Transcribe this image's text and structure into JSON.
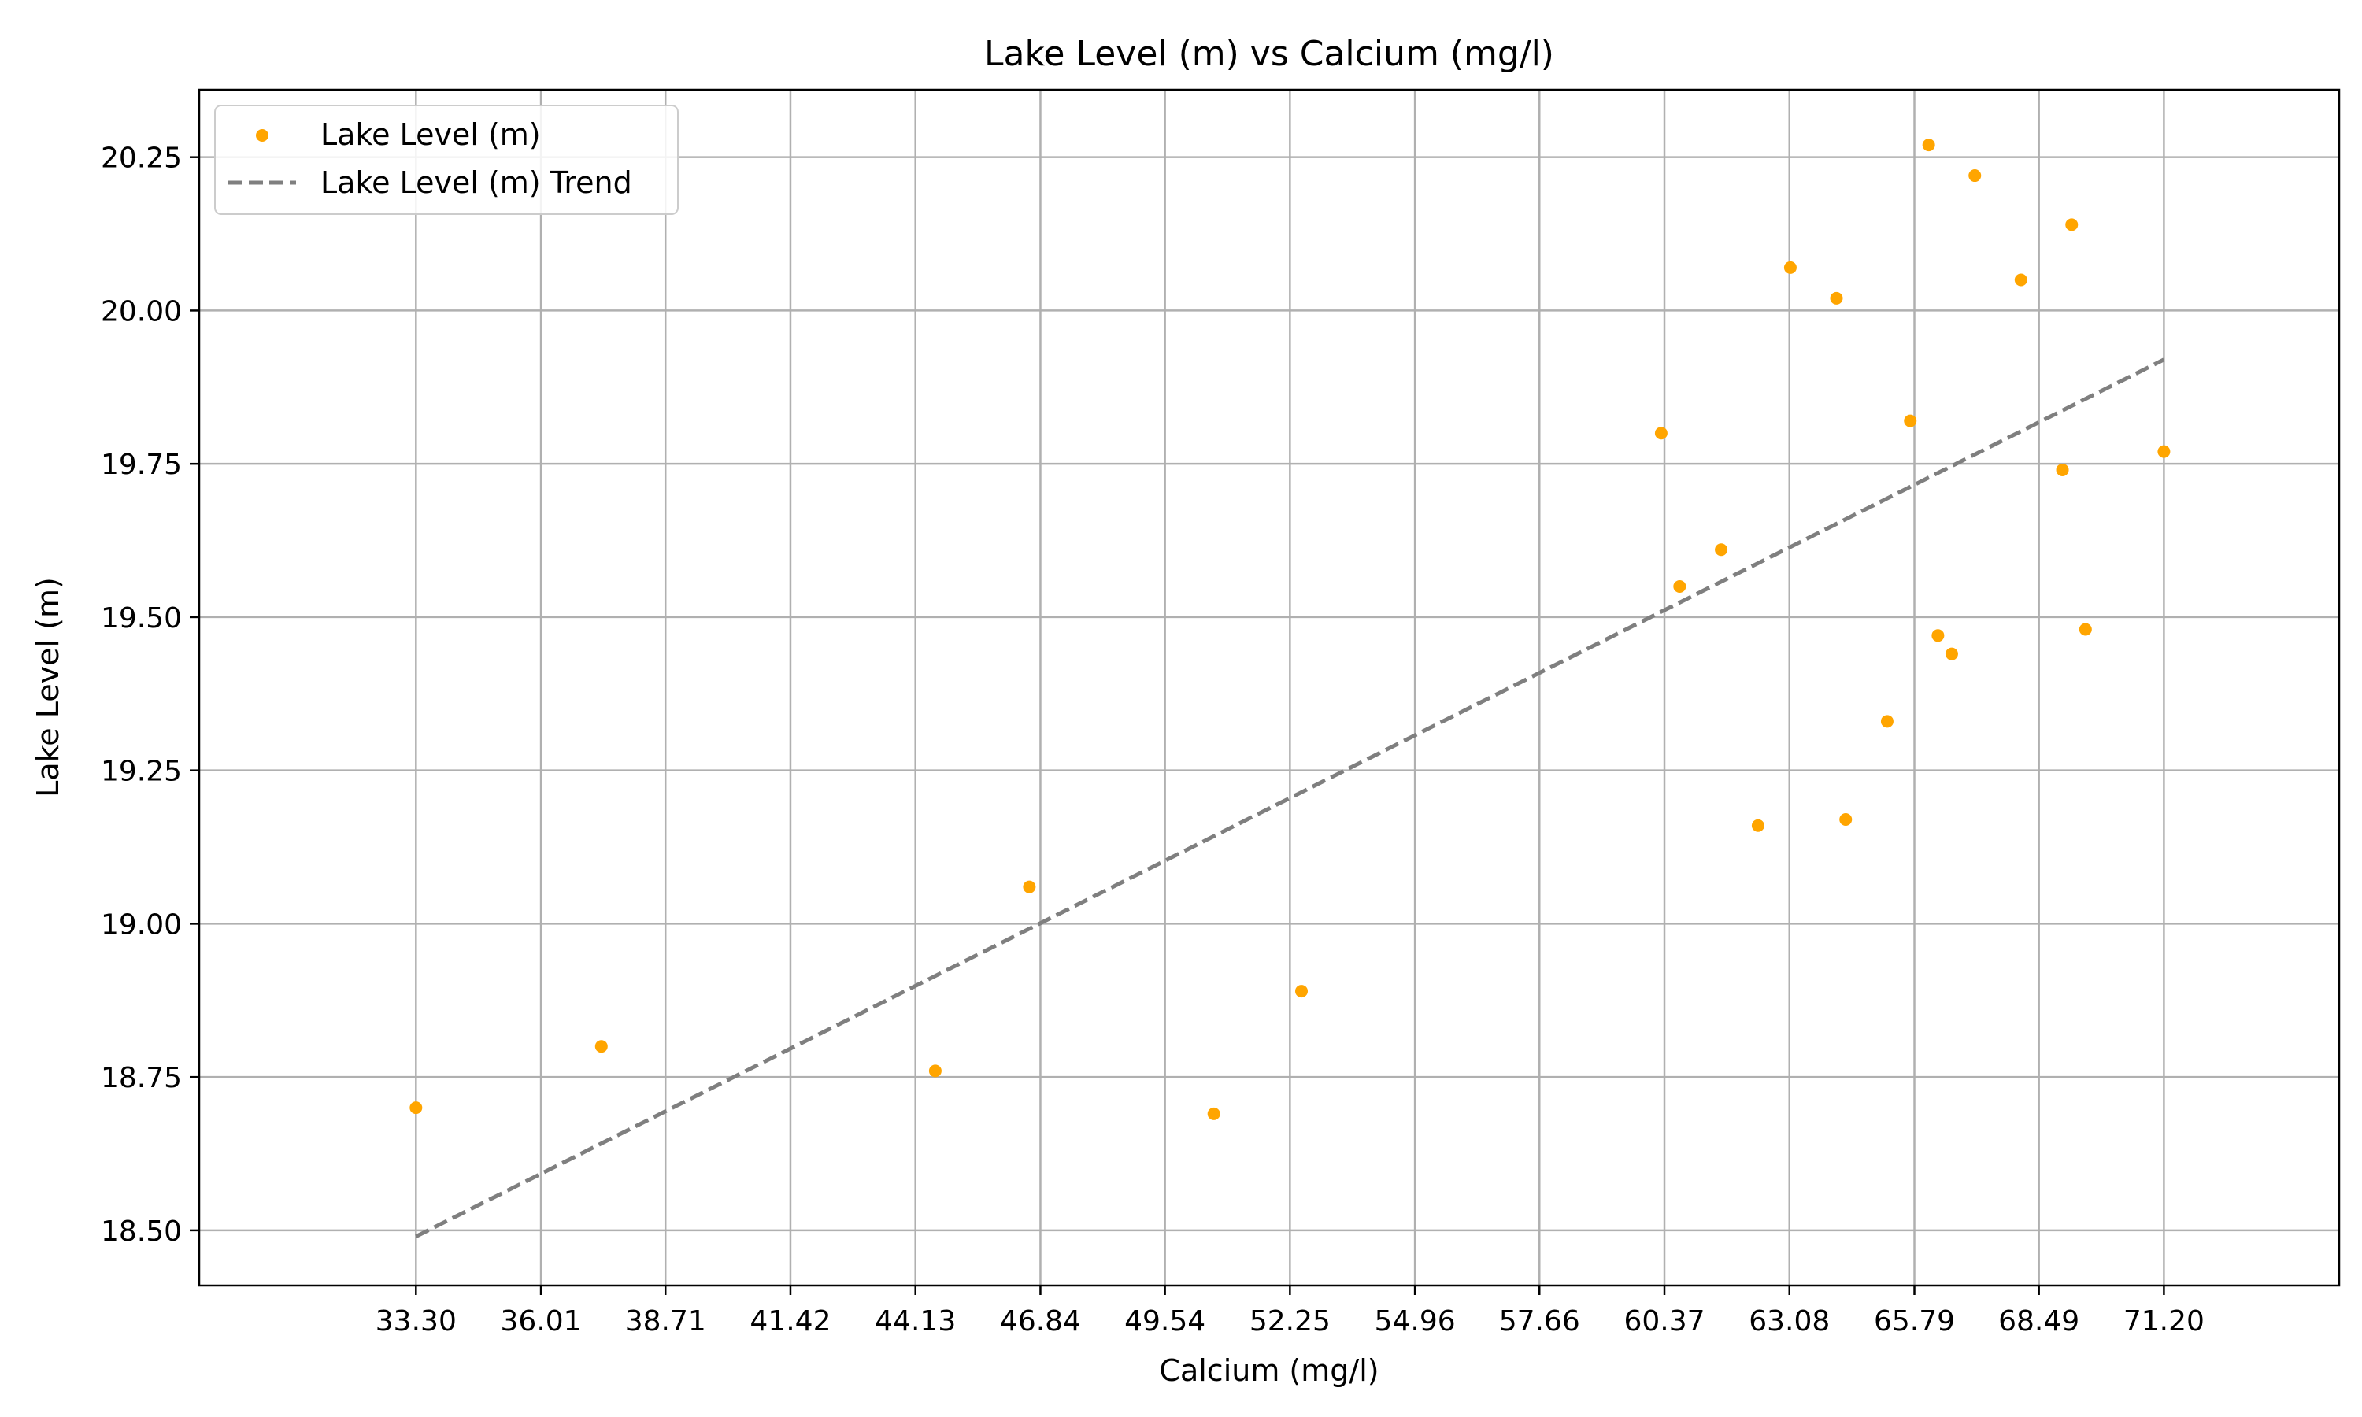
{
  "chart_data": {
    "type": "scatter",
    "title": "Lake Level (m) vs Calcium (mg/l)",
    "xlabel": "Calcium (mg/l)",
    "ylabel": "Lake Level (m)",
    "xlim": [
      28.6,
      75.0
    ],
    "ylim": [
      18.41,
      20.36
    ],
    "x_ticks": [
      33.3,
      36.01,
      38.71,
      41.42,
      44.13,
      46.84,
      49.54,
      52.25,
      54.96,
      57.66,
      60.37,
      63.08,
      65.79,
      68.49,
      71.2
    ],
    "x_tick_labels": [
      "33.30",
      "36.01",
      "38.71",
      "41.42",
      "44.13",
      "46.84",
      "49.54",
      "52.25",
      "54.96",
      "57.66",
      "60.37",
      "63.08",
      "65.79",
      "68.49",
      "71.20"
    ],
    "y_ticks": [
      18.5,
      18.75,
      19.0,
      19.25,
      19.5,
      19.75,
      20.0,
      20.25
    ],
    "y_tick_labels": [
      "18.50",
      "18.75",
      "19.00",
      "19.25",
      "19.50",
      "19.75",
      "20.00",
      "20.25"
    ],
    "grid": true,
    "legend_position": "top-left",
    "colors": {
      "points": "#ffa500",
      "trend": "#7f7f7f",
      "grid": "#b0b0b0"
    },
    "series": [
      {
        "name": "Lake Level (m)",
        "kind": "scatter",
        "points": [
          {
            "x": 33.3,
            "y": 18.7
          },
          {
            "x": 37.32,
            "y": 18.8
          },
          {
            "x": 44.56,
            "y": 18.76
          },
          {
            "x": 46.6,
            "y": 19.06
          },
          {
            "x": 50.6,
            "y": 18.69
          },
          {
            "x": 52.5,
            "y": 18.89
          },
          {
            "x": 60.3,
            "y": 19.8
          },
          {
            "x": 60.7,
            "y": 19.55
          },
          {
            "x": 61.6,
            "y": 19.61
          },
          {
            "x": 62.4,
            "y": 19.16
          },
          {
            "x": 63.1,
            "y": 20.07
          },
          {
            "x": 64.1,
            "y": 20.02
          },
          {
            "x": 64.3,
            "y": 19.17
          },
          {
            "x": 65.2,
            "y": 19.33
          },
          {
            "x": 65.7,
            "y": 19.82
          },
          {
            "x": 66.1,
            "y": 20.27
          },
          {
            "x": 66.3,
            "y": 19.47
          },
          {
            "x": 66.6,
            "y": 19.44
          },
          {
            "x": 67.1,
            "y": 20.22
          },
          {
            "x": 68.1,
            "y": 20.05
          },
          {
            "x": 69.0,
            "y": 19.74
          },
          {
            "x": 69.2,
            "y": 20.14
          },
          {
            "x": 69.5,
            "y": 19.48
          },
          {
            "x": 71.2,
            "y": 19.77
          }
        ]
      },
      {
        "name": "Lake Level (m) Trend",
        "kind": "line",
        "style": "dashed",
        "points": [
          {
            "x": 33.3,
            "y": 18.49
          },
          {
            "x": 71.2,
            "y": 19.92
          }
        ]
      }
    ]
  }
}
